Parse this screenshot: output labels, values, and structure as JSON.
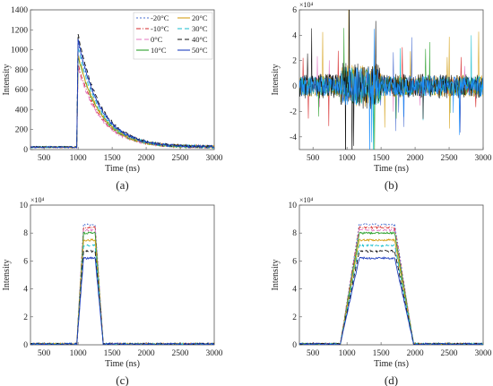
{
  "chart_data": [
    {
      "type": "line",
      "panel_label": "(a)",
      "xlabel": "Time (ns)",
      "ylabel": "Intensity",
      "xlim": [
        300,
        3000
      ],
      "ylim": [
        0,
        1400
      ],
      "xticks": [
        500,
        1000,
        1500,
        2000,
        2500,
        3000
      ],
      "yticks": [
        0,
        200,
        400,
        600,
        800,
        1000,
        1200,
        1400
      ],
      "y_exponent": "",
      "legend_position": "top-right",
      "legend": [
        {
          "name": "-20°C",
          "color": "#4a6fd1",
          "dash": "2,2"
        },
        {
          "name": "20°C",
          "color": "#d4a017",
          "dash": ""
        },
        {
          "name": "-10°C",
          "color": "#d62728",
          "dash": "5,2,1,2"
        },
        {
          "name": "30°C",
          "color": "#17becf",
          "dash": "5,3"
        },
        {
          "name": "0°C",
          "color": "#e377c2",
          "dash": "6,3"
        },
        {
          "name": "40°C",
          "color": "#111111",
          "dash": "5,3"
        },
        {
          "name": "10°C",
          "color": "#2ca02c",
          "dash": ""
        },
        {
          "name": "50°C",
          "color": "#1f3fbf",
          "dash": ""
        }
      ],
      "curve_shape": "fast rise at 980 ns, peak near 1000 ns, exponential decay to about 50 by 2500 ns",
      "series": [
        {
          "name": "-20°C",
          "color": "#4a6fd1",
          "baseline": 25,
          "peak": 1080
        },
        {
          "name": "-10°C",
          "color": "#d62728",
          "baseline": 25,
          "peak": 860
        },
        {
          "name": "0°C",
          "color": "#e377c2",
          "baseline": 25,
          "peak": 820
        },
        {
          "name": "10°C",
          "color": "#2ca02c",
          "baseline": 25,
          "peak": 930
        },
        {
          "name": "20°C",
          "color": "#d4a017",
          "baseline": 25,
          "peak": 950
        },
        {
          "name": "30°C",
          "color": "#17becf",
          "baseline": 25,
          "peak": 1020
        },
        {
          "name": "40°C",
          "color": "#111111",
          "baseline": 25,
          "peak": 1150
        },
        {
          "name": "50°C",
          "color": "#1f3fbf",
          "baseline": 25,
          "peak": 1100
        }
      ]
    },
    {
      "type": "line",
      "panel_label": "(b)",
      "xlabel": "Time (ns)",
      "ylabel": "Intensity",
      "xlim": [
        300,
        3000
      ],
      "ylim": [
        -5,
        6
      ],
      "xticks": [
        500,
        1000,
        1500,
        2000,
        2500,
        3000
      ],
      "yticks": [
        -4,
        -2,
        0,
        2,
        4,
        6
      ],
      "y_exponent": "×10⁴",
      "curve_shape": "dense noise around zero, typical amplitude ±1×10⁴, spikes up to ±4×10⁴ between 900 and 1500 ns",
      "series": [
        {
          "name": "-20°C",
          "color": "#4a6fd1",
          "amplitude": 1.0
        },
        {
          "name": "-10°C",
          "color": "#d62728",
          "amplitude": 0.8
        },
        {
          "name": "0°C",
          "color": "#e377c2",
          "amplitude": 0.7
        },
        {
          "name": "10°C",
          "color": "#2ca02c",
          "amplitude": 0.9
        },
        {
          "name": "20°C",
          "color": "#d4a017",
          "amplitude": 1.1
        },
        {
          "name": "30°C",
          "color": "#17becf",
          "amplitude": 1.0
        },
        {
          "name": "40°C",
          "color": "#111111",
          "amplitude": 1.2
        },
        {
          "name": "50°C",
          "color": "#1e90ff",
          "amplitude": 1.0
        }
      ]
    },
    {
      "type": "line",
      "panel_label": "(c)",
      "xlabel": "Time (ns)",
      "ylabel": "Intensity",
      "xlim": [
        300,
        3000
      ],
      "ylim": [
        0,
        10
      ],
      "xticks": [
        500,
        1000,
        1500,
        2000,
        2500,
        3000
      ],
      "yticks": [
        0,
        2,
        4,
        6,
        8,
        10
      ],
      "y_exponent": "×10⁴",
      "curve_shape": "flat top pulse: rise 980–1080 ns, plateau 1080–1250 ns, fall 1250–1370 ns",
      "series": [
        {
          "name": "-20°C",
          "color": "#4a6fd1",
          "plateau": 8.6
        },
        {
          "name": "-10°C",
          "color": "#d62728",
          "plateau": 8.4
        },
        {
          "name": "0°C",
          "color": "#e377c2",
          "plateau": 8.2
        },
        {
          "name": "10°C",
          "color": "#2ca02c",
          "plateau": 8.0
        },
        {
          "name": "20°C",
          "color": "#d4a017",
          "plateau": 7.5
        },
        {
          "name": "30°C",
          "color": "#17becf",
          "plateau": 7.1
        },
        {
          "name": "40°C",
          "color": "#111111",
          "plateau": 6.7
        },
        {
          "name": "50°C",
          "color": "#1f3fbf",
          "plateau": 6.2
        }
      ]
    },
    {
      "type": "line",
      "panel_label": "(d)",
      "xlabel": "Time (ns)",
      "ylabel": "Intensity",
      "xlim": [
        300,
        3000
      ],
      "ylim": [
        0,
        10
      ],
      "xticks": [
        500,
        1000,
        1500,
        2000,
        2500,
        3000
      ],
      "yticks": [
        0,
        2,
        4,
        6,
        8,
        10
      ],
      "y_exponent": "×10⁴",
      "curve_shape": "flat top pulse: rise 900–1180 ns, plateau 1180–1700 ns, fall 1700–1980 ns",
      "series": [
        {
          "name": "-20°C",
          "color": "#4a6fd1",
          "plateau": 8.6
        },
        {
          "name": "-10°C",
          "color": "#d62728",
          "plateau": 8.4
        },
        {
          "name": "0°C",
          "color": "#e377c2",
          "plateau": 8.2
        },
        {
          "name": "10°C",
          "color": "#2ca02c",
          "plateau": 8.0
        },
        {
          "name": "20°C",
          "color": "#d4a017",
          "plateau": 7.5
        },
        {
          "name": "30°C",
          "color": "#17becf",
          "plateau": 7.1
        },
        {
          "name": "40°C",
          "color": "#111111",
          "plateau": 6.7
        },
        {
          "name": "50°C",
          "color": "#1f3fbf",
          "plateau": 6.2
        }
      ]
    }
  ]
}
